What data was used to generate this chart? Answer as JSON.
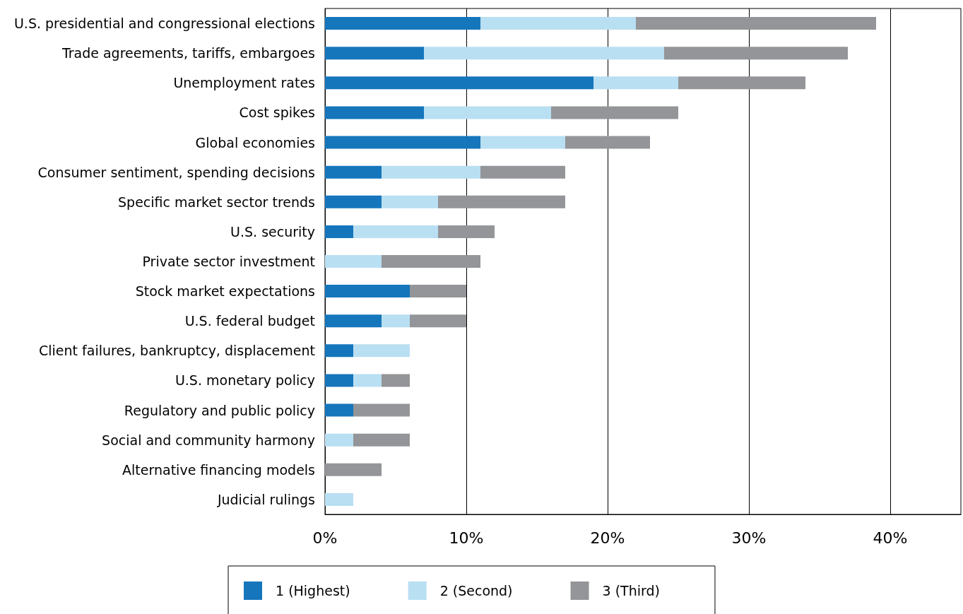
{
  "chart_data": {
    "type": "bar",
    "orientation": "horizontal",
    "stacked": true,
    "categories": [
      "U.S. presidential and congressional elections",
      "Trade agreements, tariffs, embargoes",
      "Unemployment rates",
      "Cost spikes",
      "Global economies",
      "Consumer sentiment, spending decisions",
      "Specific market sector trends",
      "U.S. security",
      "Private sector investment",
      "Stock market expectations",
      "U.S. federal budget",
      "Client failures, bankruptcy, displacement",
      "U.S. monetary policy",
      "Regulatory and public policy",
      "Social and community harmony",
      "Alternative financing models",
      "Judicial rulings"
    ],
    "series": [
      {
        "name": "1 (Highest)",
        "color": "#1576bc",
        "values": [
          11,
          7,
          19,
          7,
          11,
          4,
          4,
          2,
          null,
          6,
          4,
          2,
          2,
          2,
          null,
          null,
          null
        ]
      },
      {
        "name": "2 (Second)",
        "color": "#b9dff2",
        "values": [
          11,
          17,
          6,
          9,
          6,
          7,
          4,
          6,
          4,
          null,
          2,
          4,
          2,
          null,
          2,
          null,
          2
        ]
      },
      {
        "name": "3 (Third)",
        "color": "#939598",
        "values": [
          17,
          13,
          9,
          9,
          6,
          6,
          9,
          4,
          7,
          4,
          4,
          null,
          2,
          4,
          4,
          4,
          null
        ]
      }
    ],
    "xlim": [
      0,
      45
    ],
    "xticks": [
      {
        "value": 0,
        "label": "0%"
      },
      {
        "value": 10,
        "label": "10%"
      },
      {
        "value": 20,
        "label": "20%"
      },
      {
        "value": 30,
        "label": "30%"
      },
      {
        "value": 40,
        "label": "40%"
      }
    ],
    "grid": "x",
    "legend": "bottom"
  }
}
